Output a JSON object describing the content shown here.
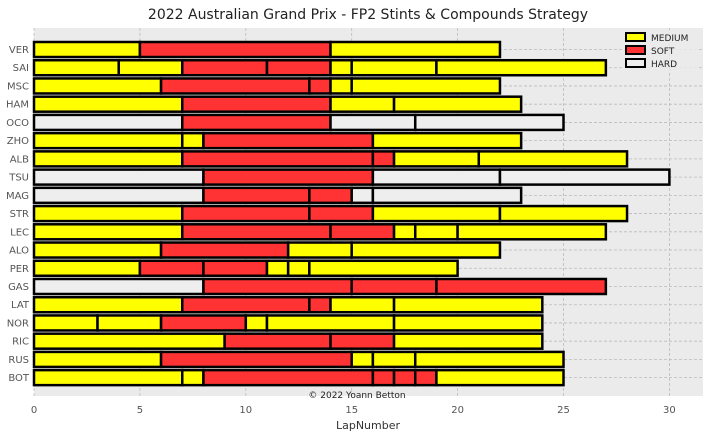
{
  "chart_data": {
    "type": "bar",
    "orientation": "horizontal-stacked",
    "title": "2022 Australian Grand Prix - FP2 Stints & Compounds Strategy",
    "xlabel": "LapNumber",
    "ylabel": "",
    "xlim": [
      0,
      31.6
    ],
    "xticks": [
      0,
      5,
      10,
      15,
      20,
      25,
      30
    ],
    "grid": true,
    "legend_position": "top-right",
    "credit": "© 2022 Yoann Betton",
    "compounds": [
      {
        "name": "MEDIUM",
        "color": "#ffff00"
      },
      {
        "name": "SOFT",
        "color": "#ff3333"
      },
      {
        "name": "HARD",
        "color": "#eeeeee"
      }
    ],
    "drivers": [
      {
        "driver": "VER",
        "stints": [
          {
            "c": "MEDIUM",
            "s": 0,
            "e": 5
          },
          {
            "c": "SOFT",
            "s": 5,
            "e": 14
          },
          {
            "c": "MEDIUM",
            "s": 14,
            "e": 22
          }
        ]
      },
      {
        "driver": "SAI",
        "stints": [
          {
            "c": "MEDIUM",
            "s": 0,
            "e": 4
          },
          {
            "c": "MEDIUM",
            "s": 4,
            "e": 7
          },
          {
            "c": "SOFT",
            "s": 7,
            "e": 11
          },
          {
            "c": "SOFT",
            "s": 11,
            "e": 14
          },
          {
            "c": "MEDIUM",
            "s": 14,
            "e": 15
          },
          {
            "c": "MEDIUM",
            "s": 15,
            "e": 19
          },
          {
            "c": "MEDIUM",
            "s": 19,
            "e": 27
          }
        ]
      },
      {
        "driver": "MSC",
        "stints": [
          {
            "c": "MEDIUM",
            "s": 0,
            "e": 6
          },
          {
            "c": "SOFT",
            "s": 6,
            "e": 13
          },
          {
            "c": "SOFT",
            "s": 13,
            "e": 14
          },
          {
            "c": "MEDIUM",
            "s": 14,
            "e": 15
          },
          {
            "c": "MEDIUM",
            "s": 15,
            "e": 22
          }
        ]
      },
      {
        "driver": "HAM",
        "stints": [
          {
            "c": "MEDIUM",
            "s": 0,
            "e": 7
          },
          {
            "c": "SOFT",
            "s": 7,
            "e": 14
          },
          {
            "c": "MEDIUM",
            "s": 14,
            "e": 17
          },
          {
            "c": "MEDIUM",
            "s": 17,
            "e": 23
          }
        ]
      },
      {
        "driver": "OCO",
        "stints": [
          {
            "c": "HARD",
            "s": 0,
            "e": 7
          },
          {
            "c": "SOFT",
            "s": 7,
            "e": 14
          },
          {
            "c": "HARD",
            "s": 14,
            "e": 18
          },
          {
            "c": "HARD",
            "s": 18,
            "e": 25
          }
        ]
      },
      {
        "driver": "ZHO",
        "stints": [
          {
            "c": "MEDIUM",
            "s": 0,
            "e": 7
          },
          {
            "c": "MEDIUM",
            "s": 7,
            "e": 8
          },
          {
            "c": "SOFT",
            "s": 8,
            "e": 16
          },
          {
            "c": "MEDIUM",
            "s": 16,
            "e": 23
          }
        ]
      },
      {
        "driver": "ALB",
        "stints": [
          {
            "c": "MEDIUM",
            "s": 0,
            "e": 7
          },
          {
            "c": "SOFT",
            "s": 7,
            "e": 16
          },
          {
            "c": "SOFT",
            "s": 16,
            "e": 17
          },
          {
            "c": "MEDIUM",
            "s": 17,
            "e": 21
          },
          {
            "c": "MEDIUM",
            "s": 21,
            "e": 28
          }
        ]
      },
      {
        "driver": "TSU",
        "stints": [
          {
            "c": "HARD",
            "s": 0,
            "e": 8
          },
          {
            "c": "SOFT",
            "s": 8,
            "e": 16
          },
          {
            "c": "HARD",
            "s": 16,
            "e": 22
          },
          {
            "c": "HARD",
            "s": 22,
            "e": 30
          }
        ]
      },
      {
        "driver": "MAG",
        "stints": [
          {
            "c": "HARD",
            "s": 0,
            "e": 8
          },
          {
            "c": "SOFT",
            "s": 8,
            "e": 13
          },
          {
            "c": "SOFT",
            "s": 13,
            "e": 15
          },
          {
            "c": "HARD",
            "s": 15,
            "e": 16
          },
          {
            "c": "HARD",
            "s": 16,
            "e": 23
          }
        ]
      },
      {
        "driver": "STR",
        "stints": [
          {
            "c": "MEDIUM",
            "s": 0,
            "e": 7
          },
          {
            "c": "SOFT",
            "s": 7,
            "e": 13
          },
          {
            "c": "SOFT",
            "s": 13,
            "e": 16
          },
          {
            "c": "MEDIUM",
            "s": 16,
            "e": 22
          },
          {
            "c": "MEDIUM",
            "s": 22,
            "e": 28
          }
        ]
      },
      {
        "driver": "LEC",
        "stints": [
          {
            "c": "MEDIUM",
            "s": 0,
            "e": 7
          },
          {
            "c": "SOFT",
            "s": 7,
            "e": 14
          },
          {
            "c": "SOFT",
            "s": 14,
            "e": 17
          },
          {
            "c": "MEDIUM",
            "s": 17,
            "e": 18
          },
          {
            "c": "MEDIUM",
            "s": 18,
            "e": 20
          },
          {
            "c": "MEDIUM",
            "s": 20,
            "e": 27
          }
        ]
      },
      {
        "driver": "ALO",
        "stints": [
          {
            "c": "MEDIUM",
            "s": 0,
            "e": 6
          },
          {
            "c": "SOFT",
            "s": 6,
            "e": 12
          },
          {
            "c": "MEDIUM",
            "s": 12,
            "e": 15
          },
          {
            "c": "MEDIUM",
            "s": 15,
            "e": 22
          }
        ]
      },
      {
        "driver": "PER",
        "stints": [
          {
            "c": "MEDIUM",
            "s": 0,
            "e": 5
          },
          {
            "c": "SOFT",
            "s": 5,
            "e": 8
          },
          {
            "c": "SOFT",
            "s": 8,
            "e": 11
          },
          {
            "c": "MEDIUM",
            "s": 11,
            "e": 12
          },
          {
            "c": "MEDIUM",
            "s": 12,
            "e": 13
          },
          {
            "c": "MEDIUM",
            "s": 13,
            "e": 20
          }
        ]
      },
      {
        "driver": "GAS",
        "stints": [
          {
            "c": "HARD",
            "s": 0,
            "e": 8
          },
          {
            "c": "SOFT",
            "s": 8,
            "e": 15
          },
          {
            "c": "SOFT",
            "s": 15,
            "e": 19
          },
          {
            "c": "SOFT",
            "s": 19,
            "e": 27
          }
        ]
      },
      {
        "driver": "LAT",
        "stints": [
          {
            "c": "MEDIUM",
            "s": 0,
            "e": 7
          },
          {
            "c": "SOFT",
            "s": 7,
            "e": 13
          },
          {
            "c": "SOFT",
            "s": 13,
            "e": 14
          },
          {
            "c": "MEDIUM",
            "s": 14,
            "e": 17
          },
          {
            "c": "MEDIUM",
            "s": 17,
            "e": 24
          }
        ]
      },
      {
        "driver": "NOR",
        "stints": [
          {
            "c": "MEDIUM",
            "s": 0,
            "e": 3
          },
          {
            "c": "MEDIUM",
            "s": 3,
            "e": 6
          },
          {
            "c": "SOFT",
            "s": 6,
            "e": 10
          },
          {
            "c": "MEDIUM",
            "s": 10,
            "e": 11
          },
          {
            "c": "MEDIUM",
            "s": 11,
            "e": 17
          },
          {
            "c": "MEDIUM",
            "s": 17,
            "e": 24
          }
        ]
      },
      {
        "driver": "RIC",
        "stints": [
          {
            "c": "MEDIUM",
            "s": 0,
            "e": 9
          },
          {
            "c": "SOFT",
            "s": 9,
            "e": 14
          },
          {
            "c": "SOFT",
            "s": 14,
            "e": 17
          },
          {
            "c": "MEDIUM",
            "s": 17,
            "e": 24
          }
        ]
      },
      {
        "driver": "RUS",
        "stints": [
          {
            "c": "MEDIUM",
            "s": 0,
            "e": 6
          },
          {
            "c": "SOFT",
            "s": 6,
            "e": 15
          },
          {
            "c": "MEDIUM",
            "s": 15,
            "e": 16
          },
          {
            "c": "MEDIUM",
            "s": 16,
            "e": 18
          },
          {
            "c": "MEDIUM",
            "s": 18,
            "e": 25
          }
        ]
      },
      {
        "driver": "BOT",
        "stints": [
          {
            "c": "MEDIUM",
            "s": 0,
            "e": 7
          },
          {
            "c": "MEDIUM",
            "s": 7,
            "e": 8
          },
          {
            "c": "SOFT",
            "s": 8,
            "e": 16
          },
          {
            "c": "SOFT",
            "s": 16,
            "e": 17
          },
          {
            "c": "SOFT",
            "s": 17,
            "e": 18
          },
          {
            "c": "SOFT",
            "s": 18,
            "e": 19
          },
          {
            "c": "MEDIUM",
            "s": 19,
            "e": 25
          }
        ]
      }
    ]
  }
}
